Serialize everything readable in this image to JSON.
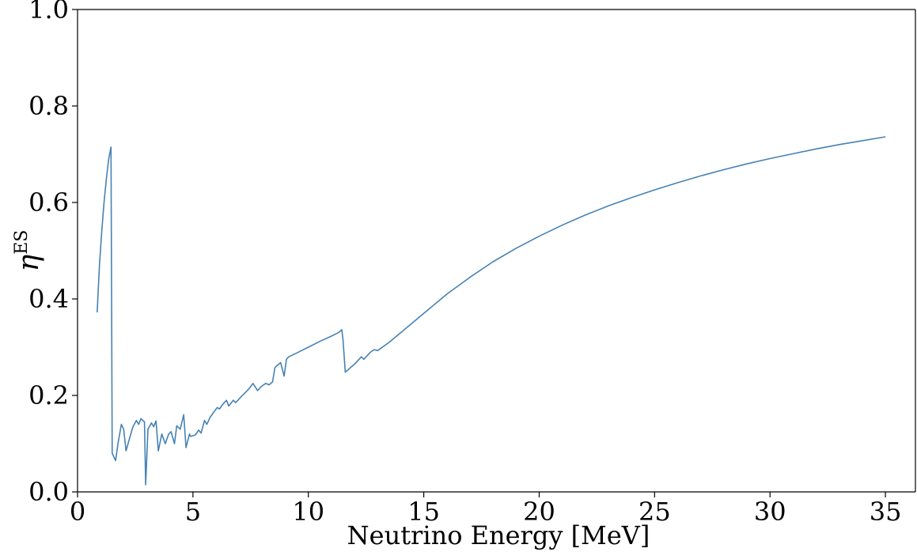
{
  "chart_data": {
    "type": "line",
    "title": "",
    "xlabel": "Neutrino Energy [MeV]",
    "ylabel_main": "η",
    "ylabel_sup": "ES",
    "xlim": [
      0,
      36.3
    ],
    "ylim": [
      0.0,
      1.0
    ],
    "xticks": [
      0,
      5,
      10,
      15,
      20,
      25,
      30,
      35
    ],
    "xtick_labels": [
      "0",
      "5",
      "10",
      "15",
      "20",
      "25",
      "30",
      "35"
    ],
    "yticks": [
      0.0,
      0.2,
      0.4,
      0.6,
      0.8,
      1.0
    ],
    "ytick_labels": [
      "0.0",
      "0.2",
      "0.4",
      "0.6",
      "0.8",
      "1.0"
    ],
    "grid": false,
    "line_color": "#4682b4",
    "series": [
      {
        "x": [
          0.85,
          0.95,
          1.05,
          1.15,
          1.25,
          1.35,
          1.45,
          1.5,
          1.65,
          1.75,
          1.9,
          2.0,
          2.1,
          2.25,
          2.4,
          2.55,
          2.65,
          2.75,
          2.9,
          2.95,
          3.05,
          3.2,
          3.3,
          3.4,
          3.5,
          3.65,
          3.8,
          3.95,
          4.05,
          4.2,
          4.3,
          4.45,
          4.6,
          4.7,
          4.85,
          4.9,
          5.1,
          5.25,
          5.35,
          5.5,
          5.6,
          5.75,
          5.9,
          6.05,
          6.15,
          6.3,
          6.45,
          6.55,
          6.75,
          6.85,
          6.95,
          7.1,
          7.25,
          7.45,
          7.6,
          7.8,
          7.95,
          8.15,
          8.3,
          8.45,
          8.55,
          8.6,
          8.8,
          8.95,
          9.05,
          9.15,
          9.5,
          10.0,
          10.5,
          11.0,
          11.3,
          11.45,
          11.5,
          11.6,
          12.0,
          12.3,
          12.4,
          12.7,
          12.85,
          13.0,
          13.5,
          14.0,
          14.5,
          15.0,
          16.0,
          17.0,
          18.0,
          19.0,
          20.0,
          21.0,
          22.0,
          23.0,
          24.0,
          25.0,
          26.0,
          27.0,
          28.0,
          29.0,
          30.0,
          31.0,
          32.0,
          33.0,
          34.0,
          35.0
        ],
        "y": [
          0.372,
          0.47,
          0.54,
          0.6,
          0.65,
          0.69,
          0.715,
          0.08,
          0.065,
          0.1,
          0.14,
          0.13,
          0.085,
          0.11,
          0.135,
          0.148,
          0.14,
          0.152,
          0.145,
          0.015,
          0.13,
          0.143,
          0.135,
          0.147,
          0.085,
          0.12,
          0.1,
          0.12,
          0.125,
          0.1,
          0.137,
          0.13,
          0.16,
          0.092,
          0.12,
          0.115,
          0.118,
          0.128,
          0.122,
          0.148,
          0.14,
          0.155,
          0.165,
          0.175,
          0.172,
          0.182,
          0.19,
          0.178,
          0.19,
          0.185,
          0.19,
          0.198,
          0.205,
          0.215,
          0.225,
          0.21,
          0.218,
          0.225,
          0.222,
          0.228,
          0.257,
          0.26,
          0.268,
          0.24,
          0.275,
          0.28,
          0.288,
          0.3,
          0.312,
          0.323,
          0.33,
          0.336,
          0.316,
          0.248,
          0.265,
          0.28,
          0.275,
          0.29,
          0.295,
          0.293,
          0.31,
          0.33,
          0.35,
          0.37,
          0.41,
          0.445,
          0.477,
          0.505,
          0.53,
          0.553,
          0.574,
          0.593,
          0.61,
          0.626,
          0.641,
          0.655,
          0.668,
          0.68,
          0.691,
          0.701,
          0.711,
          0.72,
          0.728,
          0.736
        ]
      }
    ]
  }
}
